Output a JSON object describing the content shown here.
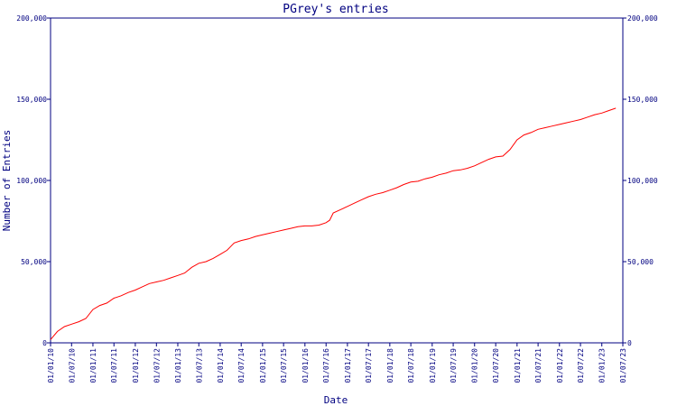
{
  "chart_data": {
    "type": "line",
    "title": "PGrey's entries",
    "xlabel": "Date",
    "ylabel": "Number of Entries",
    "ylim": [
      0,
      200000
    ],
    "y_ticks": [
      0,
      50000,
      100000,
      150000,
      200000
    ],
    "y_tick_labels": [
      "0",
      "50,000",
      "100,000",
      "150,000",
      "200,000"
    ],
    "x_range": [
      "2010-01-01",
      "2023-07-01"
    ],
    "x_ticks": [
      "2010-01-01",
      "2010-07-01",
      "2011-01-01",
      "2011-07-01",
      "2012-01-01",
      "2012-07-01",
      "2013-01-01",
      "2013-07-01",
      "2014-01-01",
      "2014-07-01",
      "2015-01-01",
      "2015-07-01",
      "2016-01-01",
      "2016-07-01",
      "2017-01-01",
      "2017-07-01",
      "2018-01-01",
      "2018-07-01",
      "2019-01-01",
      "2019-07-01",
      "2020-01-01",
      "2020-07-01",
      "2021-01-01",
      "2021-07-01",
      "2022-01-01",
      "2022-07-01",
      "2023-01-01",
      "2023-07-01"
    ],
    "x_tick_labels": [
      "01/01/10",
      "01/07/10",
      "01/01/11",
      "01/07/11",
      "01/01/12",
      "01/07/12",
      "01/01/13",
      "01/07/13",
      "01/01/14",
      "01/07/14",
      "01/01/15",
      "01/07/15",
      "01/01/16",
      "01/07/16",
      "01/01/17",
      "01/07/17",
      "01/01/18",
      "01/07/18",
      "01/01/19",
      "01/07/19",
      "01/01/20",
      "01/07/20",
      "01/01/21",
      "01/07/21",
      "01/01/22",
      "01/07/22",
      "01/01/23",
      "01/07/23"
    ],
    "right_axis": true,
    "grid": false,
    "colors": {
      "line": "#ff0000",
      "axis": "#000080",
      "text": "#000080"
    },
    "series": [
      {
        "x": [
          "2010-01-01",
          "2010-03-01",
          "2010-05-01",
          "2010-07-01",
          "2010-09-01",
          "2010-11-01",
          "2011-01-01",
          "2011-03-01",
          "2011-05-01",
          "2011-07-01",
          "2011-09-01",
          "2011-11-01",
          "2012-01-01",
          "2012-03-01",
          "2012-05-01",
          "2012-07-01",
          "2012-09-01",
          "2012-11-01",
          "2013-01-01",
          "2013-03-01",
          "2013-05-01",
          "2013-07-01",
          "2013-09-01",
          "2013-11-01",
          "2014-01-01",
          "2014-03-01",
          "2014-05-01",
          "2014-07-01",
          "2014-09-01",
          "2014-11-01",
          "2015-01-01",
          "2015-03-01",
          "2015-05-01",
          "2015-07-01",
          "2015-09-01",
          "2015-11-01",
          "2016-01-01",
          "2016-03-01",
          "2016-05-01",
          "2016-07-01",
          "2016-08-01",
          "2016-09-01",
          "2016-11-01",
          "2017-01-01",
          "2017-03-01",
          "2017-05-01",
          "2017-07-01",
          "2017-09-01",
          "2017-11-01",
          "2018-01-01",
          "2018-03-01",
          "2018-05-01",
          "2018-07-01",
          "2018-09-01",
          "2018-11-01",
          "2019-01-01",
          "2019-03-01",
          "2019-05-01",
          "2019-07-01",
          "2019-09-01",
          "2019-11-01",
          "2020-01-01",
          "2020-03-01",
          "2020-05-01",
          "2020-07-01",
          "2020-09-01",
          "2020-11-01",
          "2021-01-01",
          "2021-03-01",
          "2021-05-01",
          "2021-07-01",
          "2021-09-01",
          "2021-11-01",
          "2022-01-01",
          "2022-03-01",
          "2022-05-01",
          "2022-07-01",
          "2022-09-01",
          "2022-11-01",
          "2023-01-01",
          "2023-03-01",
          "2023-05-01"
        ],
        "y": [
          2000,
          7000,
          10000,
          11500,
          13000,
          15000,
          20500,
          23000,
          24500,
          27500,
          29000,
          31000,
          32500,
          34500,
          36500,
          37500,
          38500,
          40000,
          41500,
          43000,
          46500,
          49000,
          50000,
          52000,
          54500,
          57000,
          61500,
          63000,
          64000,
          65500,
          66500,
          67500,
          68500,
          69500,
          70500,
          71500,
          72000,
          72000,
          72500,
          74000,
          75500,
          80000,
          82000,
          84000,
          86000,
          88000,
          90000,
          91500,
          92500,
          94000,
          95500,
          97500,
          99000,
          99500,
          101000,
          102000,
          103500,
          104500,
          106000,
          106500,
          107500,
          109000,
          111000,
          113000,
          114500,
          115000,
          119000,
          125000,
          128000,
          129500,
          131500,
          132500,
          133500,
          134500,
          135500,
          136500,
          137500,
          139000,
          140500,
          141500,
          143000,
          144500
        ]
      }
    ]
  }
}
